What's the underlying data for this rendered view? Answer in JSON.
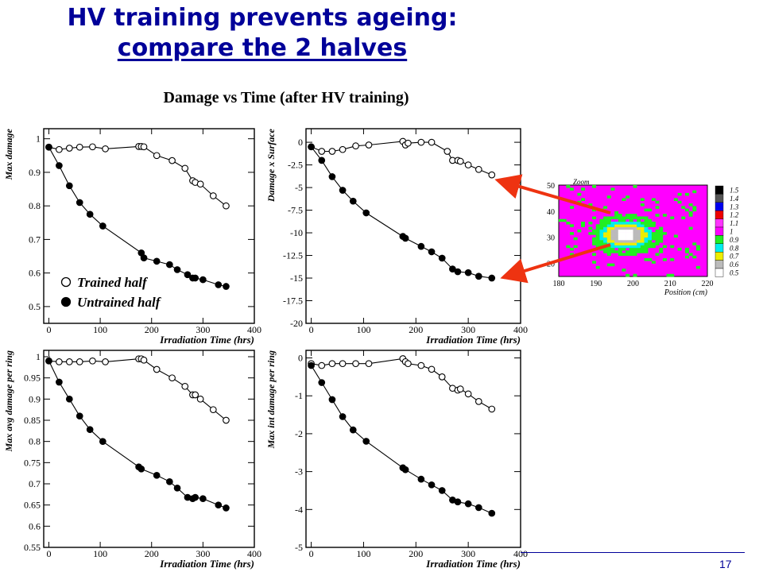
{
  "slide": {
    "title_line1": "HV training prevents ageing:",
    "title_line2": "compare the 2 halves",
    "subtitle": "Damage vs Time (after HV training)",
    "page_number": "17"
  },
  "colors": {
    "title": "#000099",
    "arrow": "#ee3311",
    "series": "#000000"
  },
  "chart_data": [
    {
      "type": "line",
      "ylabel": "Max damage",
      "xlabel": "Irradiation Time (hrs)",
      "xlim": [
        -10,
        400
      ],
      "ylim": [
        0.45,
        1.03
      ],
      "xticks": [
        0,
        100,
        200,
        300,
        400
      ],
      "yticks": [
        0.5,
        0.6,
        0.7,
        0.8,
        0.9,
        1
      ],
      "legend": [
        "Trained half",
        "Untrained half"
      ],
      "series": [
        {
          "name": "Trained half",
          "marker": "open",
          "x": [
            0,
            20,
            40,
            60,
            85,
            110,
            175,
            180,
            185,
            210,
            240,
            265,
            280,
            285,
            295,
            320,
            345
          ],
          "y": [
            0.975,
            0.968,
            0.972,
            0.975,
            0.976,
            0.97,
            0.977,
            0.977,
            0.976,
            0.95,
            0.935,
            0.912,
            0.875,
            0.87,
            0.865,
            0.83,
            0.8
          ]
        },
        {
          "name": "Untrained half",
          "marker": "filled",
          "x": [
            0,
            20,
            40,
            60,
            80,
            105,
            180,
            185,
            210,
            235,
            250,
            270,
            280,
            285,
            300,
            330,
            345
          ],
          "y": [
            0.975,
            0.92,
            0.86,
            0.81,
            0.775,
            0.74,
            0.66,
            0.645,
            0.635,
            0.625,
            0.61,
            0.595,
            0.585,
            0.585,
            0.58,
            0.565,
            0.56
          ]
        }
      ]
    },
    {
      "type": "line",
      "ylabel": "Damage x Surface",
      "xlabel": "Irradiation Time (hrs)",
      "xlim": [
        -10,
        400
      ],
      "ylim": [
        -20,
        1.5
      ],
      "xticks": [
        0,
        100,
        200,
        300,
        400
      ],
      "yticks": [
        0,
        -2.5,
        -5,
        -7.5,
        -10,
        -12.5,
        -15,
        -17.5,
        -20
      ],
      "series": [
        {
          "name": "",
          "marker": "open",
          "x": [
            0,
            20,
            40,
            60,
            85,
            110,
            175,
            180,
            185,
            210,
            230,
            260,
            270,
            280,
            285,
            300,
            320,
            345
          ],
          "y": [
            -0.5,
            -1.0,
            -1.0,
            -0.8,
            -0.4,
            -0.3,
            0.1,
            -0.3,
            -0.1,
            0.0,
            0.0,
            -1.0,
            -2.0,
            -2.0,
            -2.1,
            -2.5,
            -3.0,
            -3.6
          ]
        },
        {
          "name": "",
          "marker": "filled",
          "x": [
            0,
            20,
            40,
            60,
            80,
            105,
            175,
            180,
            210,
            230,
            250,
            270,
            280,
            300,
            320,
            345
          ],
          "y": [
            -0.5,
            -2.0,
            -3.8,
            -5.3,
            -6.5,
            -7.8,
            -10.4,
            -10.6,
            -11.5,
            -12.1,
            -12.8,
            -14.0,
            -14.3,
            -14.4,
            -14.8,
            -15.0
          ]
        }
      ]
    },
    {
      "type": "line",
      "ylabel": "Max avg damage per ring",
      "xlabel": "Irradiation Time (hrs)",
      "xlim": [
        -10,
        400
      ],
      "ylim": [
        0.55,
        1.015
      ],
      "xticks": [
        0,
        100,
        200,
        300,
        400
      ],
      "yticks": [
        0.55,
        0.6,
        0.65,
        0.7,
        0.75,
        0.8,
        0.85,
        0.9,
        0.95,
        1
      ],
      "series": [
        {
          "name": "",
          "marker": "open",
          "x": [
            0,
            20,
            40,
            60,
            85,
            110,
            175,
            180,
            185,
            210,
            240,
            265,
            280,
            285,
            295,
            320,
            345
          ],
          "y": [
            0.99,
            0.988,
            0.988,
            0.988,
            0.99,
            0.988,
            0.995,
            0.995,
            0.992,
            0.97,
            0.95,
            0.93,
            0.91,
            0.91,
            0.9,
            0.875,
            0.85
          ]
        },
        {
          "name": "",
          "marker": "filled",
          "x": [
            0,
            20,
            40,
            60,
            80,
            105,
            175,
            180,
            210,
            235,
            250,
            270,
            280,
            285,
            300,
            330,
            345
          ],
          "y": [
            0.99,
            0.94,
            0.9,
            0.86,
            0.828,
            0.8,
            0.74,
            0.735,
            0.72,
            0.705,
            0.69,
            0.668,
            0.665,
            0.668,
            0.665,
            0.65,
            0.643
          ]
        }
      ]
    },
    {
      "type": "line",
      "ylabel": "Max int damage per ring",
      "xlabel": "Irradiation Time (hrs)",
      "xlim": [
        -10,
        400
      ],
      "ylim": [
        -5,
        0.2
      ],
      "xticks": [
        0,
        100,
        200,
        300,
        400
      ],
      "yticks": [
        0,
        -1,
        -2,
        -3,
        -4,
        -5
      ],
      "series": [
        {
          "name": "",
          "marker": "open",
          "x": [
            0,
            20,
            40,
            60,
            85,
            110,
            175,
            180,
            185,
            210,
            230,
            250,
            270,
            280,
            285,
            300,
            320,
            345
          ],
          "y": [
            -0.15,
            -0.2,
            -0.15,
            -0.15,
            -0.15,
            -0.15,
            -0.02,
            -0.1,
            -0.15,
            -0.2,
            -0.3,
            -0.5,
            -0.8,
            -0.85,
            -0.82,
            -0.95,
            -1.15,
            -1.35
          ]
        },
        {
          "name": "",
          "marker": "filled",
          "x": [
            0,
            20,
            40,
            60,
            80,
            105,
            175,
            180,
            210,
            230,
            250,
            270,
            280,
            300,
            320,
            345
          ],
          "y": [
            -0.2,
            -0.65,
            -1.1,
            -1.55,
            -1.9,
            -2.2,
            -2.9,
            -2.95,
            -3.2,
            -3.35,
            -3.5,
            -3.75,
            -3.8,
            -3.85,
            -3.95,
            -4.1
          ]
        }
      ]
    },
    {
      "type": "heatmap",
      "title": "Zoom",
      "xlabel": "Position (cm)",
      "xlim": [
        180,
        220
      ],
      "ylim": [
        15,
        50
      ],
      "xticks": [
        180,
        190,
        200,
        210,
        220
      ],
      "yticks": [
        20,
        30,
        40,
        50
      ],
      "color_scale": [
        {
          "label": "1.5",
          "color": "#000000"
        },
        {
          "label": "1.4",
          "color": "#555555"
        },
        {
          "label": "1.3",
          "color": "#0000ee"
        },
        {
          "label": "1.2",
          "color": "#ee0000"
        },
        {
          "label": "1.1",
          "color": "#ff33ff"
        },
        {
          "label": "1",
          "color": "#ff00ff"
        },
        {
          "label": "0.9",
          "color": "#22ee22"
        },
        {
          "label": "0.8",
          "color": "#00eeee"
        },
        {
          "label": "0.7",
          "color": "#eeee00"
        },
        {
          "label": "0.6",
          "color": "#bbbbbb"
        },
        {
          "label": "0.5",
          "color": "#ffffff"
        }
      ]
    }
  ]
}
